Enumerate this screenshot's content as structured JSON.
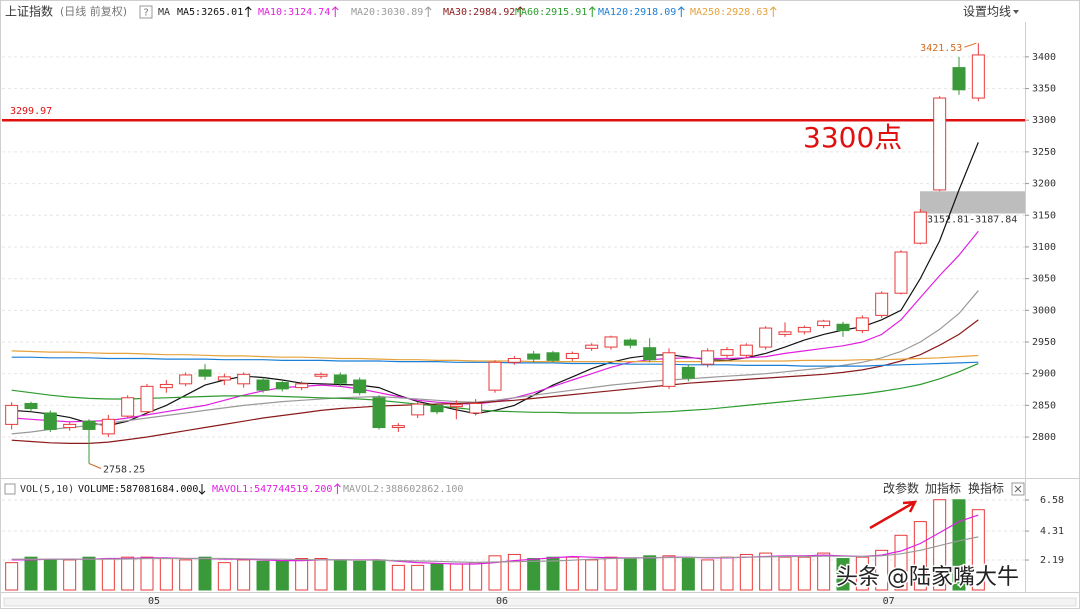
{
  "chart_data": [
    {
      "type": "candlestick",
      "title": "上证指数",
      "subtitle": "(日线 前复权)",
      "help": "?",
      "ma_label": "MA",
      "settings_label": "设置均线",
      "up_color": "#e8393a",
      "down_color": "#3a9a3a",
      "open": [
        2820,
        2853,
        2838,
        2815,
        2825,
        2805,
        2833,
        2840,
        2878,
        2884,
        2906,
        2890,
        2884,
        2890,
        2886,
        2878,
        2896,
        2898,
        2890,
        2862,
        2815,
        2835,
        2850,
        2848,
        2838,
        2874,
        2918,
        2931,
        2933,
        2924,
        2940,
        2942,
        2953,
        2941,
        2880,
        2910,
        2915,
        2929,
        2929,
        2942,
        2962,
        2966,
        2976,
        2978,
        2968,
        2992,
        3027,
        3106,
        3190,
        3383,
        3335
      ],
      "high": [
        2855,
        2856,
        2842,
        2825,
        2828,
        2835,
        2866,
        2884,
        2890,
        2902,
        2915,
        2900,
        2902,
        2894,
        2890,
        2888,
        2902,
        2902,
        2894,
        2866,
        2822,
        2856,
        2854,
        2858,
        2860,
        2921,
        2928,
        2936,
        2936,
        2935,
        2948,
        2960,
        2956,
        2956,
        2940,
        2914,
        2940,
        2942,
        2948,
        2975,
        2981,
        2976,
        2985,
        2982,
        2992,
        3030,
        3095,
        3160,
        3338,
        3400,
        3421.53
      ],
      "low": [
        2812,
        2840,
        2808,
        2810,
        2758.25,
        2800,
        2830,
        2836,
        2870,
        2880,
        2890,
        2882,
        2878,
        2870,
        2872,
        2874,
        2892,
        2880,
        2866,
        2812,
        2808,
        2830,
        2836,
        2828,
        2834,
        2870,
        2914,
        2918,
        2918,
        2920,
        2936,
        2938,
        2940,
        2918,
        2876,
        2888,
        2910,
        2925,
        2925,
        2938,
        2958,
        2962,
        2972,
        2958,
        2964,
        2988,
        3025,
        3104,
        3188,
        3340,
        3330
      ],
      "close": [
        2850,
        2845,
        2812,
        2820,
        2812,
        2828,
        2862,
        2880,
        2883,
        2898,
        2896,
        2895,
        2899,
        2874,
        2876,
        2884,
        2899,
        2885,
        2870,
        2815,
        2818,
        2852,
        2840,
        2851,
        2853,
        2918,
        2924,
        2923,
        2921,
        2932,
        2945,
        2958,
        2945,
        2922,
        2933,
        2893,
        2936,
        2938,
        2945,
        2972,
        2966,
        2973,
        2983,
        2968,
        2988,
        3027,
        3092,
        3155,
        3335,
        3348,
        3403
      ],
      "series": [
        {
          "name": "MA5:3265.01",
          "color": "#111111",
          "values": [
            2842,
            2840,
            2836,
            2831,
            2822,
            2818,
            2825,
            2838,
            2850,
            2866,
            2882,
            2890,
            2896,
            2894,
            2890,
            2885,
            2884,
            2883,
            2882,
            2878,
            2866,
            2856,
            2850,
            2843,
            2837,
            2842,
            2850,
            2866,
            2882,
            2895,
            2908,
            2918,
            2925,
            2929,
            2930,
            2926,
            2922,
            2921,
            2925,
            2932,
            2942,
            2953,
            2962,
            2969,
            2974,
            2985,
            3000,
            3050,
            3110,
            3190,
            3265.01
          ]
        },
        {
          "name": "MA10:3124.74",
          "color": "#e020e0",
          "values": [
            2830,
            2828,
            2826,
            2824,
            2825,
            2826,
            2830,
            2835,
            2840,
            2845,
            2850,
            2858,
            2866,
            2873,
            2878,
            2880,
            2882,
            2880,
            2876,
            2870,
            2864,
            2858,
            2855,
            2853,
            2852,
            2856,
            2862,
            2870,
            2880,
            2890,
            2900,
            2910,
            2918,
            2922,
            2924,
            2925,
            2924,
            2924,
            2925,
            2927,
            2932,
            2936,
            2940,
            2944,
            2950,
            2962,
            2985,
            3020,
            3055,
            3087,
            3124.74
          ]
        },
        {
          "name": "MA20:3030.89",
          "color": "#9a9a9a",
          "values": [
            2805,
            2808,
            2812,
            2815,
            2818,
            2822,
            2826,
            2830,
            2834,
            2838,
            2842,
            2846,
            2850,
            2853,
            2856,
            2858,
            2860,
            2862,
            2863,
            2864,
            2862,
            2860,
            2858,
            2856,
            2855,
            2858,
            2862,
            2866,
            2870,
            2874,
            2878,
            2882,
            2885,
            2888,
            2890,
            2892,
            2894,
            2896,
            2898,
            2900,
            2903,
            2906,
            2909,
            2913,
            2918,
            2925,
            2935,
            2950,
            2970,
            2995,
            3030.89
          ]
        },
        {
          "name": "MA30:2984.92",
          "color": "#8b1a1a",
          "values": [
            2795,
            2793,
            2791,
            2790,
            2790,
            2792,
            2796,
            2800,
            2805,
            2810,
            2815,
            2820,
            2825,
            2830,
            2834,
            2838,
            2842,
            2845,
            2847,
            2849,
            2850,
            2851,
            2852,
            2853,
            2854,
            2856,
            2858,
            2861,
            2864,
            2867,
            2870,
            2873,
            2876,
            2879,
            2882,
            2885,
            2887,
            2889,
            2891,
            2893,
            2895,
            2897,
            2899,
            2902,
            2906,
            2912,
            2920,
            2930,
            2945,
            2962,
            2984.92
          ]
        },
        {
          "name": "MA60:2915.91",
          "color": "#2e9b2e",
          "values": [
            2874,
            2870,
            2866,
            2863,
            2861,
            2860,
            2860,
            2861,
            2862,
            2863,
            2864,
            2865,
            2865,
            2865,
            2864,
            2863,
            2862,
            2861,
            2860,
            2858,
            2855,
            2852,
            2849,
            2846,
            2843,
            2841,
            2840,
            2839,
            2839,
            2838,
            2838,
            2838,
            2838,
            2839,
            2840,
            2842,
            2844,
            2847,
            2850,
            2853,
            2856,
            2859,
            2862,
            2865,
            2868,
            2872,
            2877,
            2883,
            2892,
            2903,
            2915.91
          ]
        },
        {
          "name": "MA120:2918.09",
          "color": "#1a7fd6",
          "values": [
            2926,
            2926,
            2925,
            2925,
            2925,
            2924,
            2924,
            2924,
            2923,
            2923,
            2923,
            2922,
            2922,
            2922,
            2921,
            2921,
            2921,
            2920,
            2920,
            2920,
            2919,
            2919,
            2919,
            2918,
            2918,
            2918,
            2917,
            2917,
            2917,
            2916,
            2916,
            2916,
            2915,
            2915,
            2915,
            2914,
            2914,
            2914,
            2913,
            2913,
            2913,
            2912,
            2912,
            2912,
            2912,
            2913,
            2914,
            2915,
            2916,
            2917,
            2918.09
          ]
        },
        {
          "name": "MA250:2928.63",
          "color": "#e6a23c",
          "values": [
            2936,
            2935,
            2934,
            2934,
            2933,
            2932,
            2932,
            2931,
            2930,
            2930,
            2929,
            2928,
            2928,
            2927,
            2926,
            2926,
            2925,
            2924,
            2924,
            2923,
            2922,
            2922,
            2921,
            2921,
            2920,
            2920,
            2920,
            2919,
            2919,
            2919,
            2919,
            2919,
            2919,
            2919,
            2919,
            2919,
            2919,
            2920,
            2920,
            2920,
            2920,
            2921,
            2921,
            2921,
            2922,
            2922,
            2923,
            2924,
            2925,
            2927,
            2928.63
          ]
        }
      ],
      "ylim": [
        2748,
        3455
      ],
      "yticks": [
        2800,
        2850,
        2900,
        2950,
        3000,
        3050,
        3100,
        3150,
        3200,
        3250,
        3300,
        3350,
        3400
      ],
      "grid": true,
      "hline": 3299.97,
      "hline_color": "#e01010",
      "note": "3300点",
      "band": [
        3152.81,
        3187.84
      ],
      "band_label": "3152.81-3187.84",
      "band_color": "#bdbdbd"
    },
    {
      "type": "bar",
      "title": "VOL(5,10)",
      "volume_label": "VOLUME:587081684.000",
      "buttons": [
        "改参数",
        "加指标",
        "换指标"
      ],
      "categories": [
        null,
        null,
        null,
        null,
        null,
        null,
        null,
        "05",
        null,
        null,
        null,
        null,
        null,
        null,
        null,
        null,
        null,
        null,
        null,
        null,
        null,
        null,
        null,
        null,
        null,
        "06",
        null,
        null,
        null,
        null,
        null,
        null,
        null,
        null,
        null,
        null,
        null,
        null,
        null,
        null,
        null,
        null,
        null,
        null,
        null,
        "07",
        null,
        null,
        null,
        null,
        null
      ],
      "values": [
        2.0,
        2.4,
        2.2,
        2.2,
        2.4,
        2.3,
        2.4,
        2.4,
        2.3,
        2.2,
        2.4,
        2.0,
        2.2,
        2.1,
        2.1,
        2.3,
        2.3,
        2.2,
        2.1,
        2.2,
        1.8,
        1.8,
        1.9,
        1.9,
        2.0,
        2.5,
        2.6,
        2.3,
        2.4,
        2.4,
        2.2,
        2.4,
        2.3,
        2.5,
        2.5,
        2.3,
        2.2,
        2.4,
        2.6,
        2.7,
        2.4,
        2.4,
        2.7,
        2.3,
        2.4,
        2.9,
        4.0,
        5.0,
        6.6,
        6.6,
        5.87
      ],
      "series": [
        {
          "name": "MAVOL1:547744519.200",
          "color": "#e020e0",
          "values": [
            2.2,
            2.2,
            2.25,
            2.25,
            2.25,
            2.3,
            2.3,
            2.35,
            2.35,
            2.3,
            2.3,
            2.25,
            2.25,
            2.2,
            2.15,
            2.15,
            2.2,
            2.2,
            2.2,
            2.2,
            2.1,
            2.0,
            1.95,
            1.9,
            1.9,
            2.0,
            2.15,
            2.25,
            2.35,
            2.45,
            2.4,
            2.35,
            2.35,
            2.35,
            2.4,
            2.4,
            2.35,
            2.35,
            2.4,
            2.45,
            2.5,
            2.5,
            2.55,
            2.5,
            2.45,
            2.55,
            2.85,
            3.4,
            4.2,
            5.0,
            5.48
          ]
        },
        {
          "name": "MAVOL2:388602862.100",
          "color": "#9a9a9a",
          "values": [
            2.25,
            2.25,
            2.25,
            2.25,
            2.25,
            2.25,
            2.27,
            2.3,
            2.3,
            2.3,
            2.3,
            2.3,
            2.28,
            2.26,
            2.25,
            2.22,
            2.2,
            2.2,
            2.18,
            2.18,
            2.15,
            2.12,
            2.1,
            2.05,
            2.02,
            2.05,
            2.07,
            2.1,
            2.12,
            2.18,
            2.25,
            2.3,
            2.33,
            2.36,
            2.38,
            2.38,
            2.38,
            2.38,
            2.4,
            2.42,
            2.45,
            2.45,
            2.47,
            2.47,
            2.45,
            2.5,
            2.65,
            2.9,
            3.25,
            3.6,
            3.886
          ]
        }
      ],
      "ylim": [
        0,
        6.8
      ],
      "yticks": [
        2.19,
        4.31,
        6.58
      ]
    }
  ],
  "watermark": "头条 @陆家嘴大牛"
}
